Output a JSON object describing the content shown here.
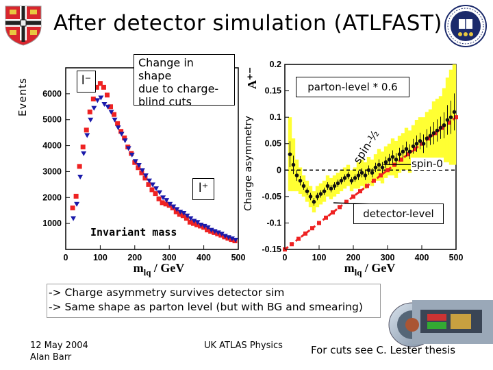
{
  "slide": {
    "title": "After detector simulation (ATLFAST)",
    "bullets": [
      "-> Charge asymmetry survives detector sim",
      "-> Same shape as parton level (but with BG and smearing)"
    ],
    "footer": {
      "date": "12 May 2004",
      "author": "Alan Barr",
      "center": "UK ATLAS Physics",
      "right": "For cuts see C. Lester thesis"
    },
    "left_plot": {
      "ylabel": "Events",
      "callout": [
        "Change in shape",
        "due to charge-",
        "blind cuts"
      ],
      "label_lminus": "l⁻",
      "label_lplus": "l⁺",
      "label_invariant": "Invariant mass"
    },
    "right_plot": {
      "ylabel": "Charge asymmetry",
      "ylabel_symbol": "A⁺⁻",
      "label_parton": "parton-level * 0.6",
      "label_spin_half": "spin-½",
      "label_spin0": "spin-0",
      "label_detector": "detector-level"
    },
    "colors": {
      "red": "#ee2222",
      "blue": "#1a1aaa",
      "yellow": "#ffff33",
      "dark": "#111111"
    }
  },
  "chart_data": [
    {
      "type": "scatter",
      "xlabel": "m_lq / GeV",
      "ylabel": "Events",
      "xlim": [
        0,
        500
      ],
      "ylim": [
        0,
        7000
      ],
      "xticks": [
        0,
        100,
        200,
        300,
        400,
        500
      ],
      "yticks": [
        1000,
        2000,
        3000,
        4000,
        5000,
        6000
      ],
      "xtick_labels": [
        "0",
        "100",
        "200",
        "300",
        "400",
        "500"
      ],
      "ytick_labels": [
        "1000",
        "2000",
        "3000",
        "4000",
        "5000",
        "6000"
      ],
      "xlabel_main": "m",
      "xlabel_sub": "lq",
      "xlabel_unit": " / GeV",
      "x": [
        20,
        30,
        40,
        50,
        60,
        70,
        80,
        90,
        100,
        110,
        120,
        130,
        140,
        150,
        160,
        170,
        180,
        190,
        200,
        210,
        220,
        230,
        240,
        250,
        260,
        270,
        280,
        290,
        300,
        310,
        320,
        330,
        340,
        350,
        360,
        370,
        380,
        390,
        400,
        410,
        420,
        430,
        440,
        450,
        460,
        470,
        480,
        490
      ],
      "series": [
        {
          "marker": "square-red",
          "values": [
            1600,
            2050,
            3200,
            3950,
            4600,
            5300,
            5800,
            6250,
            6400,
            6250,
            5950,
            5500,
            5200,
            4850,
            4550,
            4300,
            3950,
            3700,
            3350,
            3150,
            2950,
            2750,
            2500,
            2300,
            2150,
            1950,
            1800,
            1750,
            1700,
            1600,
            1450,
            1350,
            1300,
            1200,
            1050,
            1000,
            950,
            900,
            850,
            750,
            700,
            650,
            600,
            550,
            480,
            430,
            380,
            330
          ]
        },
        {
          "marker": "triangle-blue",
          "values": [
            1200,
            1750,
            2800,
            3700,
            4400,
            5000,
            5450,
            5750,
            5850,
            5600,
            5500,
            5300,
            5000,
            4700,
            4450,
            4200,
            3900,
            3650,
            3400,
            3250,
            3050,
            2850,
            2650,
            2500,
            2350,
            2200,
            2000,
            1900,
            1750,
            1650,
            1550,
            1450,
            1400,
            1300,
            1200,
            1100,
            1050,
            950,
            900,
            850,
            750,
            700,
            650,
            600,
            520,
            470,
            420,
            370
          ]
        }
      ]
    },
    {
      "type": "scatter",
      "xlabel": "m_lq / GeV",
      "ylabel": "Charge asymmetry",
      "xlim": [
        0,
        500
      ],
      "ylim": [
        -0.15,
        0.2
      ],
      "xticks": [
        0,
        100,
        200,
        300,
        400,
        500
      ],
      "yticks": [
        -0.15,
        -0.1,
        -0.05,
        0,
        0.05,
        0.1,
        0.15,
        0.2
      ],
      "xtick_labels": [
        "0",
        "100",
        "200",
        "300",
        "400",
        "500"
      ],
      "ytick_labels": [
        "-0.15",
        "-0.1",
        "-0.05",
        "0",
        "0.05",
        "0.1",
        "0.15",
        "0.2"
      ],
      "xlabel_main": "m",
      "xlabel_sub": "lq",
      "xlabel_unit": " / GeV",
      "detector_level": {
        "x": [
          15,
          25,
          35,
          45,
          55,
          65,
          75,
          85,
          95,
          105,
          115,
          125,
          135,
          145,
          155,
          165,
          175,
          185,
          195,
          205,
          215,
          225,
          235,
          245,
          255,
          265,
          275,
          285,
          295,
          305,
          315,
          325,
          335,
          345,
          355,
          365,
          375,
          385,
          395,
          405,
          415,
          425,
          435,
          445,
          455,
          465,
          475,
          485,
          495
        ],
        "y": [
          0.03,
          0.01,
          -0.01,
          -0.02,
          -0.03,
          -0.04,
          -0.05,
          -0.06,
          -0.05,
          -0.045,
          -0.04,
          -0.03,
          -0.035,
          -0.03,
          -0.025,
          -0.02,
          -0.015,
          -0.01,
          -0.02,
          -0.015,
          -0.01,
          -0.005,
          -0.01,
          0,
          -0.005,
          0.005,
          0.01,
          0.005,
          0.015,
          0.02,
          0.025,
          0.02,
          0.03,
          0.035,
          0.04,
          0.035,
          0.045,
          0.05,
          0.055,
          0.05,
          0.06,
          0.065,
          0.07,
          0.075,
          0.08,
          0.085,
          0.095,
          0.1,
          0.11
        ],
        "err": [
          0.07,
          0.05,
          0.03,
          0.025,
          0.02,
          0.02,
          0.02,
          0.02,
          0.02,
          0.02,
          0.02,
          0.02,
          0.02,
          0.02,
          0.02,
          0.02,
          0.02,
          0.02,
          0.02,
          0.02,
          0.025,
          0.025,
          0.025,
          0.025,
          0.025,
          0.025,
          0.03,
          0.03,
          0.03,
          0.03,
          0.035,
          0.035,
          0.035,
          0.035,
          0.04,
          0.04,
          0.04,
          0.045,
          0.045,
          0.05,
          0.05,
          0.05,
          0.06,
          0.06,
          0.06,
          0.07,
          0.08,
          0.09,
          0.1
        ]
      },
      "parton_level_x0.6": {
        "x": [
          0,
          20,
          40,
          60,
          80,
          100,
          120,
          140,
          160,
          180,
          200,
          220,
          240,
          260,
          280,
          300,
          320,
          340,
          360,
          380,
          400,
          420,
          440,
          460,
          480,
          500
        ],
        "y": [
          -0.15,
          -0.14,
          -0.13,
          -0.12,
          -0.11,
          -0.1,
          -0.09,
          -0.08,
          -0.07,
          -0.06,
          -0.05,
          -0.04,
          -0.03,
          -0.02,
          -0.01,
          0,
          0.01,
          0.02,
          0.03,
          0.04,
          0.05,
          0.06,
          0.07,
          0.08,
          0.09,
          0.1
        ]
      },
      "spin0_reference": 0
    }
  ]
}
